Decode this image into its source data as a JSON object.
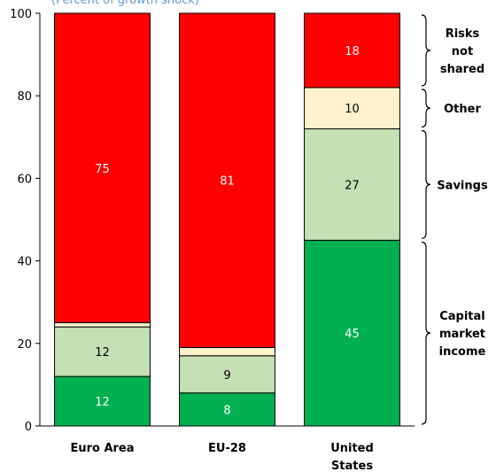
{
  "chart_data": {
    "type": "bar",
    "stacked": true,
    "subtitle": "(Percent of growth shock)",
    "categories": [
      "Euro Area",
      "EU-28",
      "United States"
    ],
    "series": [
      {
        "name": "Capital market income",
        "color": "#00b050",
        "values": [
          12,
          8,
          45
        ],
        "labels": [
          "12",
          "8",
          "45"
        ]
      },
      {
        "name": "Savings",
        "color": "#c5e0b4",
        "values": [
          12,
          9,
          27
        ],
        "labels": [
          "12",
          "9",
          "27"
        ]
      },
      {
        "name": "Other",
        "color": "#fff2cc",
        "values": [
          1,
          2,
          10
        ],
        "labels": [
          "",
          "",
          "10"
        ]
      },
      {
        "name": "Risks not shared",
        "color": "#ff0000",
        "values": [
          75,
          81,
          18
        ],
        "labels": [
          "75",
          "81",
          "18"
        ]
      }
    ],
    "ylim": [
      0,
      100
    ],
    "yticks": [
      0,
      20,
      40,
      60,
      80,
      100
    ],
    "brackets": [
      {
        "lines": [
          "Risks",
          "not",
          "shared"
        ],
        "from": 82,
        "to": 100
      },
      {
        "lines": [
          "Other"
        ],
        "from": 72,
        "to": 82
      },
      {
        "lines": [
          "Savings"
        ],
        "from": 45,
        "to": 72
      },
      {
        "lines": [
          "Capital",
          "market",
          "income"
        ],
        "from": 0,
        "to": 45
      }
    ]
  }
}
